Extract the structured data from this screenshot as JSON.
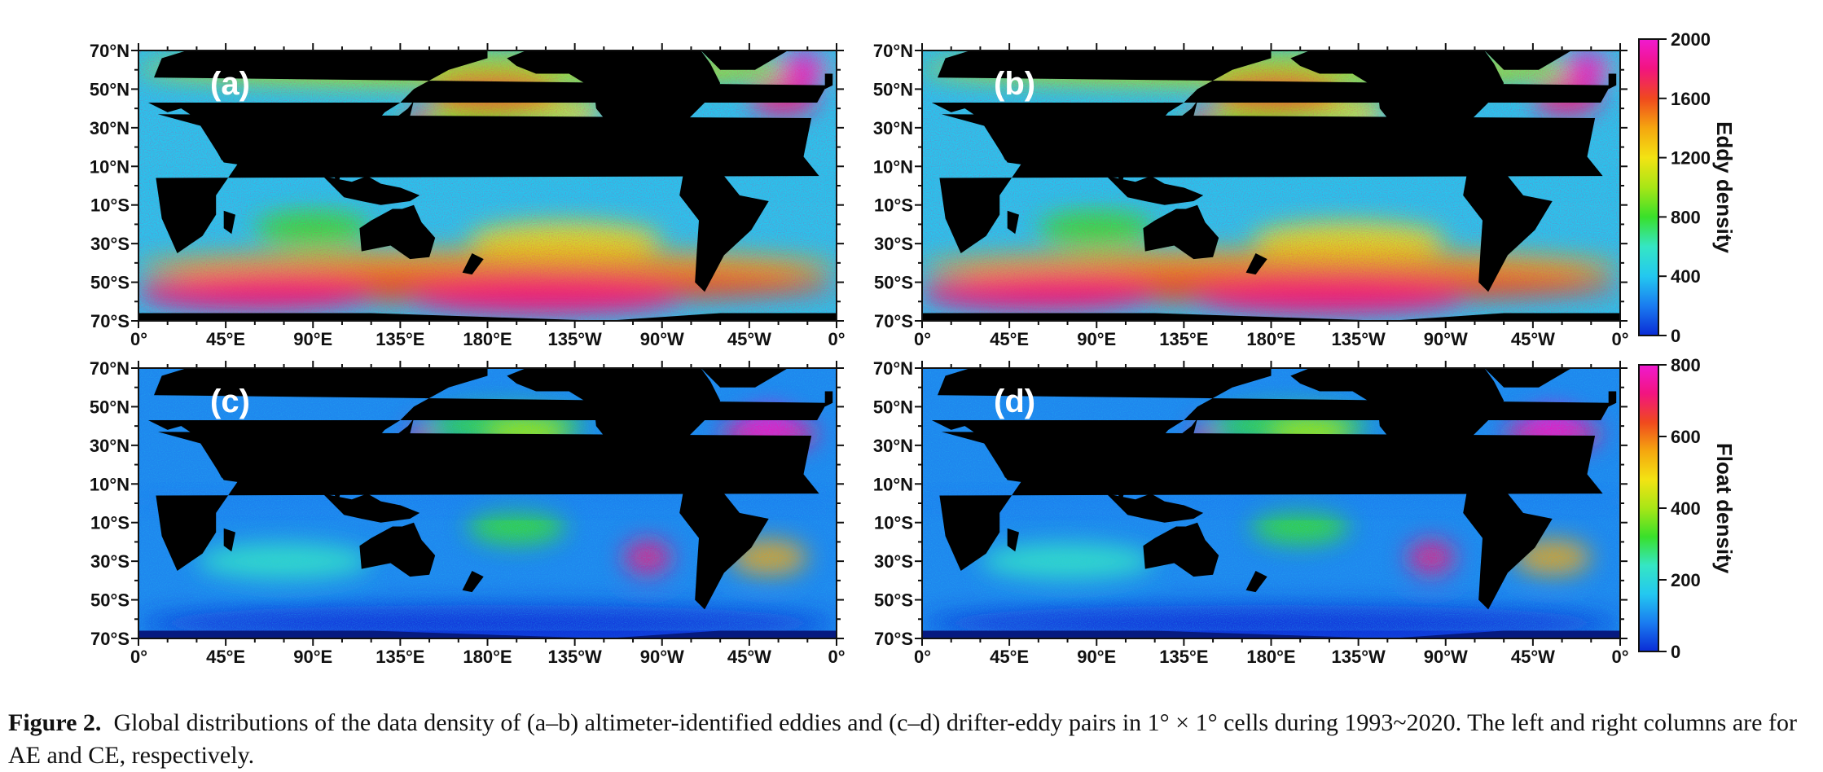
{
  "figure": {
    "panels": [
      {
        "id": "a",
        "label": "(a)",
        "row": 0,
        "col": 0,
        "variable": "eddy"
      },
      {
        "id": "b",
        "label": "(b)",
        "row": 0,
        "col": 1,
        "variable": "eddy"
      },
      {
        "id": "c",
        "label": "(c)",
        "row": 1,
        "col": 0,
        "variable": "float"
      },
      {
        "id": "d",
        "label": "(d)",
        "row": 1,
        "col": 1,
        "variable": "float"
      }
    ],
    "lat_ticks": [
      "70°N",
      "50°N",
      "30°N",
      "10°N",
      "10°S",
      "30°S",
      "50°S",
      "70°S"
    ],
    "lon_ticks": [
      "0°",
      "45°E",
      "90°E",
      "135°E",
      "180°E",
      "135°W",
      "90°W",
      "45°W",
      "0°"
    ],
    "colorbars": [
      {
        "id": "eddy",
        "title": "Eddy density",
        "ticks": [
          "0",
          "400",
          "800",
          "1200",
          "1600",
          "2000"
        ],
        "range": [
          0,
          2000
        ]
      },
      {
        "id": "float",
        "title": "Float density",
        "ticks": [
          "0",
          "200",
          "400",
          "600",
          "800"
        ],
        "range": [
          0,
          800
        ]
      }
    ],
    "colormap": [
      "#0a2bd6",
      "#1a7cf0",
      "#23c8f0",
      "#35e6c4",
      "#39e02a",
      "#a8e616",
      "#f3e313",
      "#f5a60f",
      "#f0491e",
      "#f21480",
      "#f01ad0"
    ],
    "land_color": "#000000"
  },
  "caption": {
    "label": "Figure 2.",
    "text": "Global distributions of the data density of (a–b) altimeter-identified eddies and (c–d) drifter-eddy pairs in 1° × 1° cells during 1993~2020. The left and right columns are for AE and CE, respectively."
  }
}
